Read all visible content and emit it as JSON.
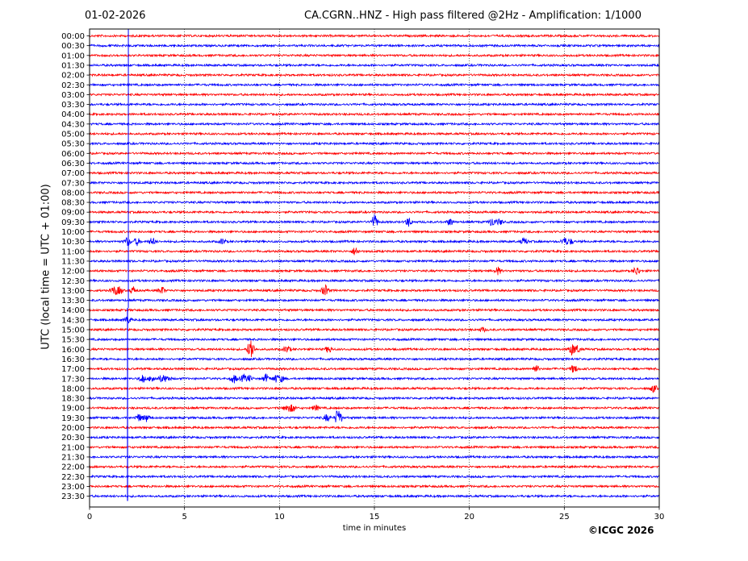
{
  "header": {
    "date": "01-02-2026",
    "title": "CA.CGRN..HNZ - High pass filtered @2Hz - Amplification: 1/1000"
  },
  "footer": {
    "copyright": "©ICGC 2026"
  },
  "chart_data": {
    "type": "line",
    "title": "CA.CGRN..HNZ - High pass filtered @2Hz - Amplification: 1/1000",
    "xlabel": "time in minutes",
    "ylabel": "UTC (local time = UTC + 01:00)",
    "xlim": [
      0,
      30
    ],
    "x_ticks": [
      0,
      5,
      10,
      15,
      20,
      25,
      30
    ],
    "grid": "vertical dotted at 5-minute intervals",
    "trace_colors": [
      "#ff0000",
      "#0000ff"
    ],
    "color_pattern": "alternating red/blue per row, starting red at 00:00",
    "rows": [
      "00:00",
      "00:30",
      "01:00",
      "01:30",
      "02:00",
      "02:30",
      "03:00",
      "03:30",
      "04:00",
      "04:30",
      "05:00",
      "05:30",
      "06:00",
      "06:30",
      "07:00",
      "07:30",
      "08:00",
      "08:30",
      "09:00",
      "09:30",
      "10:00",
      "10:30",
      "11:00",
      "11:30",
      "12:00",
      "12:30",
      "13:00",
      "13:30",
      "14:00",
      "14:30",
      "15:00",
      "15:30",
      "16:00",
      "16:30",
      "17:00",
      "17:30",
      "18:00",
      "18:30",
      "19:00",
      "19:30",
      "20:00",
      "20:30",
      "21:00",
      "21:30",
      "22:00",
      "22:30",
      "23:00",
      "23:30"
    ],
    "events": [
      {
        "row": "09:30",
        "minute": 15.0,
        "amplitude": 1.0
      },
      {
        "row": "09:30",
        "minute": 16.8,
        "amplitude": 0.6
      },
      {
        "row": "09:30",
        "minute": 19.0,
        "amplitude": 0.5
      },
      {
        "row": "09:30",
        "minute": 21.2,
        "amplitude": 0.6
      },
      {
        "row": "09:30",
        "minute": 21.6,
        "amplitude": 0.4
      },
      {
        "row": "10:30",
        "minute": 2.0,
        "amplitude": 0.6
      },
      {
        "row": "10:30",
        "minute": 2.5,
        "amplitude": 0.5
      },
      {
        "row": "10:30",
        "minute": 3.3,
        "amplitude": 0.5
      },
      {
        "row": "10:30",
        "minute": 7.0,
        "amplitude": 0.4
      },
      {
        "row": "10:30",
        "minute": 22.9,
        "amplitude": 0.5
      },
      {
        "row": "10:30",
        "minute": 25.0,
        "amplitude": 0.5
      },
      {
        "row": "10:30",
        "minute": 25.3,
        "amplitude": 0.4
      },
      {
        "row": "11:00",
        "minute": 14.0,
        "amplitude": 0.6
      },
      {
        "row": "12:00",
        "minute": 21.5,
        "amplitude": 0.5
      },
      {
        "row": "12:00",
        "minute": 28.8,
        "amplitude": 0.6
      },
      {
        "row": "13:00",
        "minute": 1.3,
        "amplitude": 0.6
      },
      {
        "row": "13:00",
        "minute": 1.6,
        "amplitude": 0.5
      },
      {
        "row": "13:00",
        "minute": 2.3,
        "amplitude": 0.5
      },
      {
        "row": "13:00",
        "minute": 3.8,
        "amplitude": 0.5
      },
      {
        "row": "13:00",
        "minute": 12.4,
        "amplitude": 0.8
      },
      {
        "row": "14:30",
        "minute": 2.0,
        "amplitude": 0.5
      },
      {
        "row": "15:00",
        "minute": 20.7,
        "amplitude": 0.3
      },
      {
        "row": "16:00",
        "minute": 8.5,
        "amplitude": 1.6
      },
      {
        "row": "16:00",
        "minute": 10.4,
        "amplitude": 0.5
      },
      {
        "row": "16:00",
        "minute": 12.6,
        "amplitude": 0.5
      },
      {
        "row": "16:00",
        "minute": 25.4,
        "amplitude": 0.8
      },
      {
        "row": "16:00",
        "minute": 25.7,
        "amplitude": 0.5
      },
      {
        "row": "17:00",
        "minute": 23.5,
        "amplitude": 0.5
      },
      {
        "row": "17:00",
        "minute": 25.5,
        "amplitude": 0.6
      },
      {
        "row": "17:30",
        "minute": 2.8,
        "amplitude": 0.6
      },
      {
        "row": "17:30",
        "minute": 3.3,
        "amplitude": 0.5
      },
      {
        "row": "17:30",
        "minute": 3.8,
        "amplitude": 0.5
      },
      {
        "row": "17:30",
        "minute": 4.1,
        "amplitude": 0.4
      },
      {
        "row": "17:30",
        "minute": 7.6,
        "amplitude": 0.6
      },
      {
        "row": "17:30",
        "minute": 8.1,
        "amplitude": 0.5
      },
      {
        "row": "17:30",
        "minute": 8.4,
        "amplitude": 0.4
      },
      {
        "row": "17:30",
        "minute": 9.3,
        "amplitude": 0.6
      },
      {
        "row": "17:30",
        "minute": 9.8,
        "amplitude": 0.5
      },
      {
        "row": "17:30",
        "minute": 10.1,
        "amplitude": 0.4
      },
      {
        "row": "18:00",
        "minute": 29.7,
        "amplitude": 0.5
      },
      {
        "row": "19:00",
        "minute": 10.4,
        "amplitude": 0.5
      },
      {
        "row": "19:00",
        "minute": 10.7,
        "amplitude": 0.5
      },
      {
        "row": "19:00",
        "minute": 11.9,
        "amplitude": 0.4
      },
      {
        "row": "19:30",
        "minute": 2.6,
        "amplitude": 0.5
      },
      {
        "row": "19:30",
        "minute": 3.0,
        "amplitude": 0.5
      },
      {
        "row": "19:30",
        "minute": 12.5,
        "amplitude": 0.5
      },
      {
        "row": "19:30",
        "minute": 13.1,
        "amplitude": 1.4
      }
    ],
    "vertical_spike": {
      "minute": 2.0,
      "rows": [
        "00:00",
        "23:30"
      ]
    }
  }
}
